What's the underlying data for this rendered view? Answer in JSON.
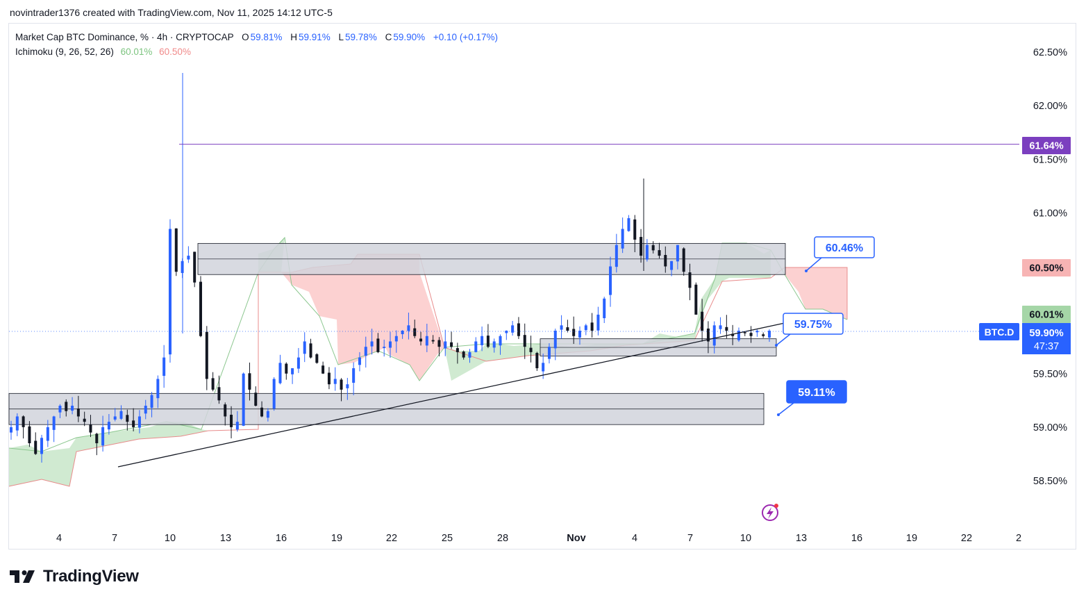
{
  "header": {
    "attribution": "novintrader1376 created with TradingView.com, Nov 11, 2025 14:12 UTC-5"
  },
  "legend": {
    "symbol": "Market Cap BTC Dominance, % · 4h · CRYPTOCAP",
    "open_label": "O",
    "open": "59.81%",
    "high_label": "H",
    "high": "59.91%",
    "low_label": "L",
    "low": "59.78%",
    "close_label": "C",
    "close": "59.90%",
    "change": "+0.10 (+0.17%)",
    "indicator": "Ichimoku (9, 26, 52, 26)",
    "ind_val1": "60.01%",
    "ind_val2": "60.50%"
  },
  "price_axis": {
    "ticks": [
      "62.50%",
      "62.00%",
      "61.50%",
      "61.00%",
      "59.50%",
      "59.00%",
      "58.50%"
    ],
    "tags": {
      "line_level": "61.64%",
      "span_b": "60.50%",
      "span_a": "60.01%",
      "symbol": "BTC.D",
      "last_price": "59.90%",
      "countdown": "47:37"
    }
  },
  "time_axis": {
    "ticks": [
      "4",
      "7",
      "10",
      "13",
      "16",
      "19",
      "22",
      "25",
      "28",
      "Nov",
      "4",
      "7",
      "10",
      "13",
      "16",
      "19",
      "22",
      "2"
    ]
  },
  "callouts": {
    "upper": "60.46%",
    "middle": "59.75%",
    "lower": "59.11%"
  },
  "brand": {
    "name": "TradingView"
  },
  "colors": {
    "bull": "#2962ff",
    "bear": "#131722",
    "cloud_green": "#a5d6a7",
    "cloud_red": "#f7b4b4",
    "accent_purple": "#7b3fbf"
  },
  "chart_data": {
    "type": "candlestick",
    "title": "Market Cap BTC Dominance, % · 4h · CRYPTOCAP",
    "ylim": [
      58.0,
      62.6
    ],
    "y_ticks": [
      62.5,
      62.0,
      61.5,
      61.0,
      59.5,
      59.0,
      58.5
    ],
    "x_ticks": [
      "4",
      "7",
      "10",
      "13",
      "16",
      "19",
      "22",
      "25",
      "28",
      "Nov",
      "4",
      "7",
      "10",
      "13",
      "16",
      "19",
      "22",
      "2"
    ],
    "ohlc_last": {
      "open": 59.81,
      "high": 59.91,
      "low": 59.78,
      "close": 59.9
    },
    "close_path": [
      59.0,
      59.1,
      59.0,
      58.85,
      58.75,
      58.9,
      59.0,
      59.1,
      59.2,
      59.15,
      59.2,
      59.1,
      59.05,
      58.95,
      58.85,
      59.0,
      59.05,
      59.1,
      59.15,
      59.05,
      59.0,
      59.1,
      59.2,
      59.3,
      59.45,
      59.65,
      60.85,
      60.45,
      60.55,
      60.6,
      60.35,
      59.85,
      59.45,
      59.35,
      59.25,
      59.1,
      59.0,
      59.05,
      59.5,
      59.35,
      59.2,
      59.1,
      59.15,
      59.45,
      59.6,
      59.5,
      59.55,
      59.65,
      59.8,
      59.65,
      59.6,
      59.5,
      59.4,
      59.45,
      59.35,
      59.4,
      59.55,
      59.65,
      59.75,
      59.8,
      59.7,
      59.75,
      59.8,
      59.85,
      59.9,
      59.95,
      59.85,
      59.8,
      59.85,
      59.8,
      59.75,
      59.8,
      59.75,
      59.7,
      59.65,
      59.7,
      59.8,
      59.85,
      59.75,
      59.8,
      59.85,
      59.9,
      59.95,
      59.85,
      59.75,
      59.7,
      59.55,
      59.6,
      59.75,
      59.9,
      59.95,
      59.9,
      59.85,
      59.9,
      59.95,
      59.9,
      60.05,
      60.2,
      60.5,
      60.7,
      60.85,
      60.95,
      60.75,
      60.6,
      60.7,
      60.65,
      60.6,
      60.5,
      60.55,
      60.7,
      60.45,
      60.3,
      60.05,
      59.9,
      59.8,
      59.95,
      59.95,
      59.9,
      59.85,
      59.9,
      59.88,
      59.85,
      59.9,
      59.85,
      59.9
    ],
    "levels": {
      "horizontal_line": 61.64,
      "callout_upper": 60.46,
      "callout_middle": 59.75,
      "callout_lower": 59.11
    },
    "zones": [
      {
        "from": 60.45,
        "to": 60.65
      },
      {
        "from": 59.05,
        "to": 59.25
      },
      {
        "from": 59.69,
        "to": 59.76
      }
    ],
    "ichimoku": {
      "params": [
        9,
        26,
        52,
        26
      ],
      "span_a": 60.01,
      "span_b": 60.5
    }
  }
}
